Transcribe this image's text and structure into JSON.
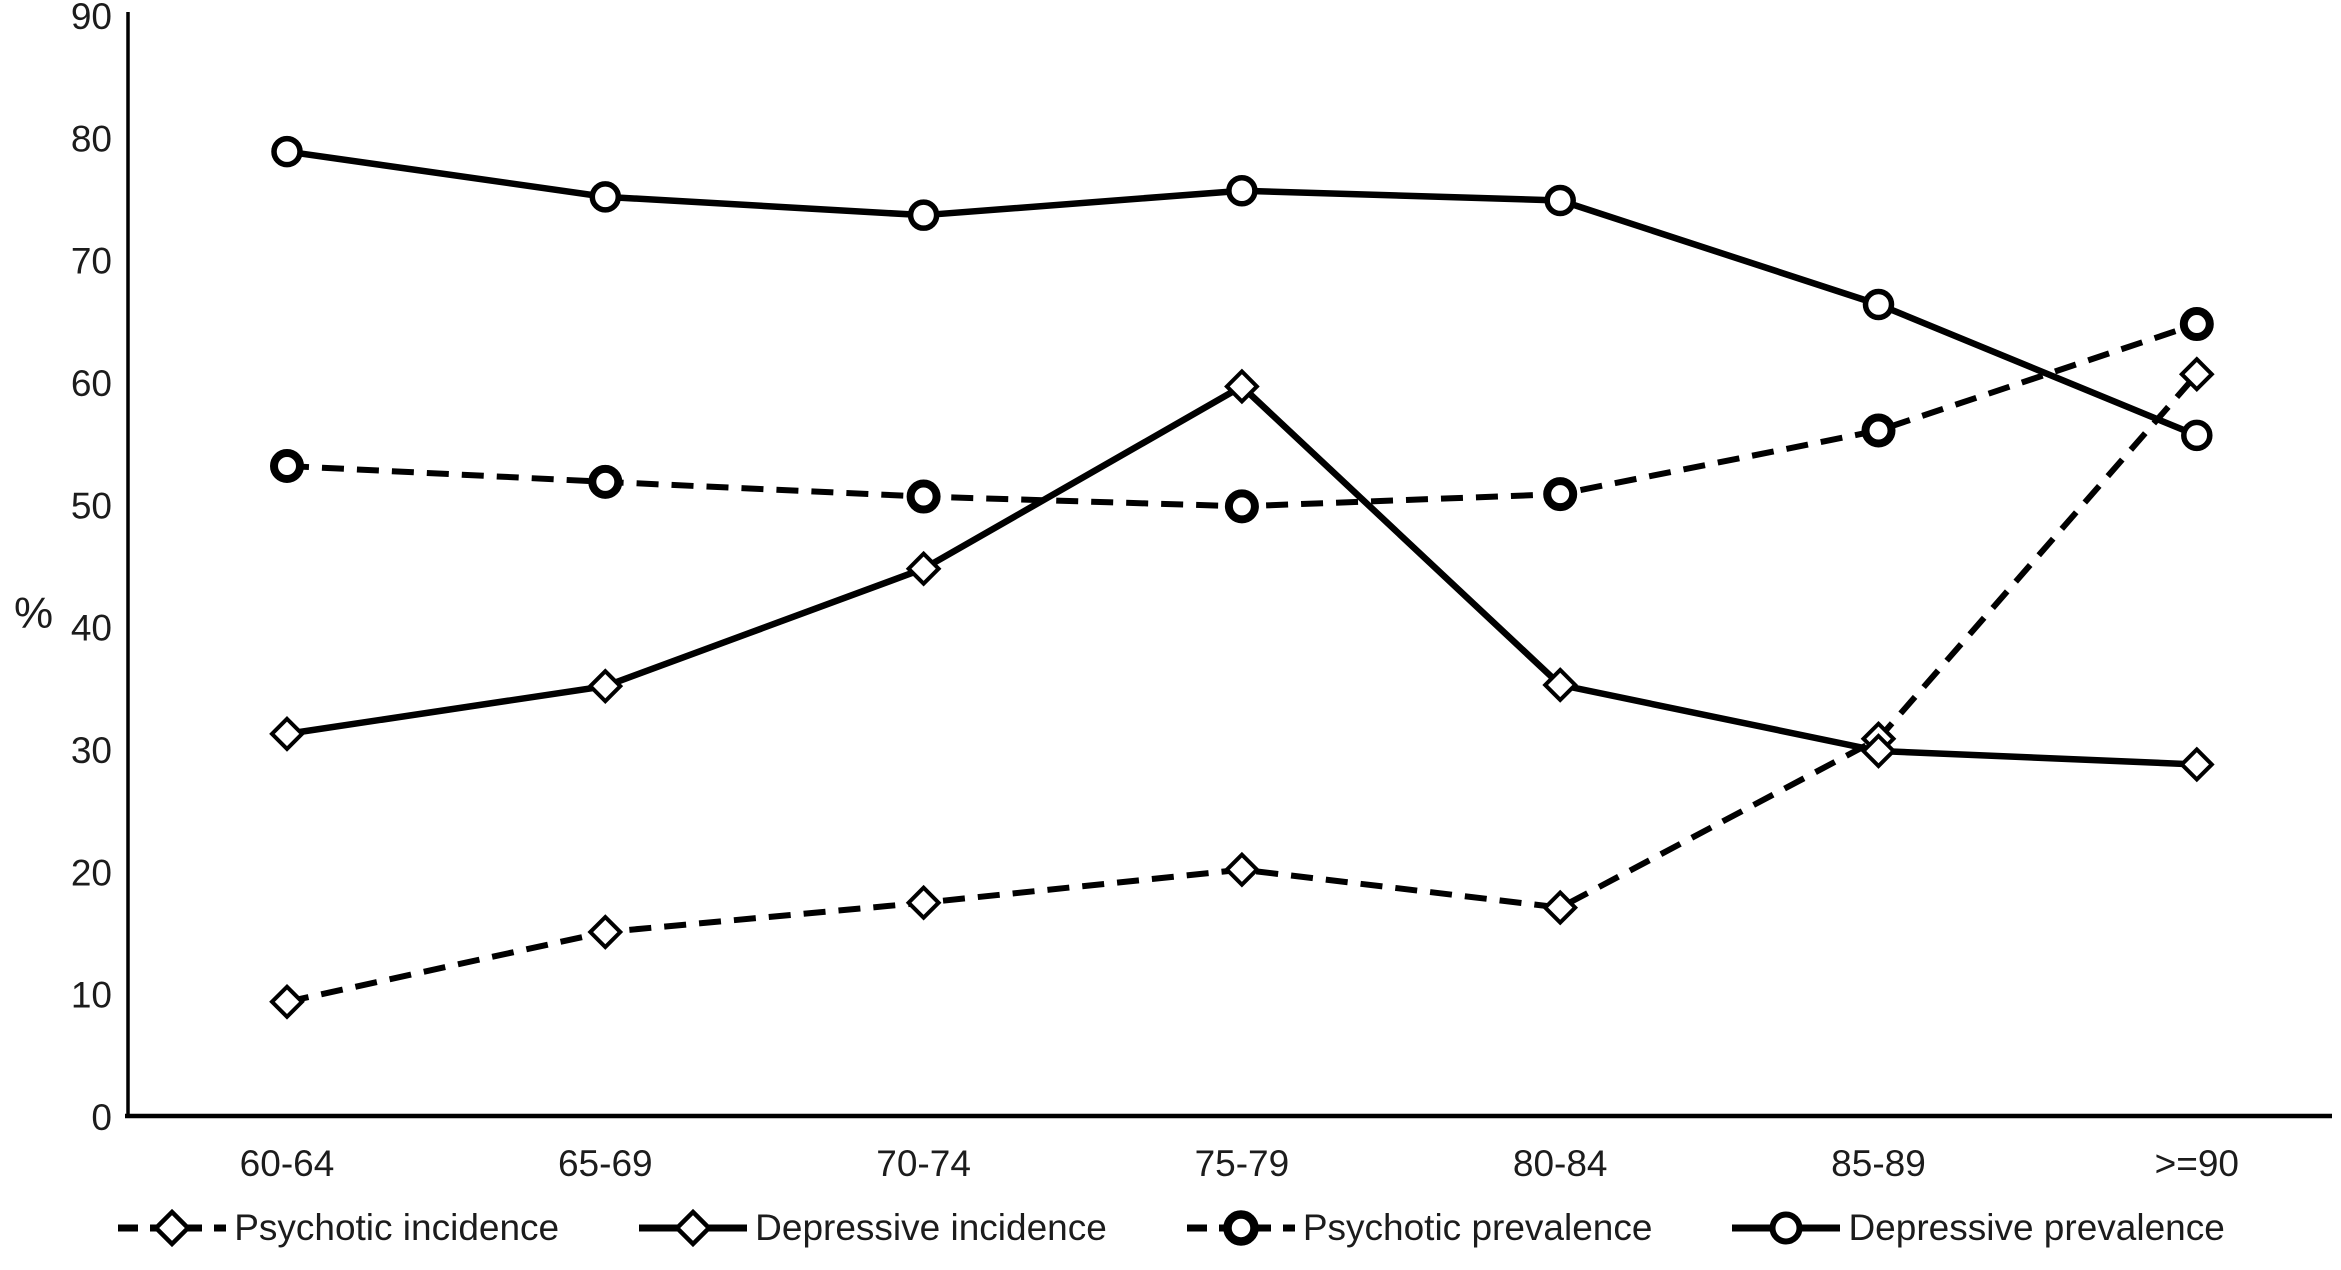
{
  "page": {
    "background": "#ffffff",
    "line_color": "#000000",
    "text_color": "#1c1c1c"
  },
  "chart_data": {
    "type": "line",
    "title": "",
    "xlabel": "",
    "ylabel": "%",
    "ylim": [
      0,
      90
    ],
    "yticks": [
      0,
      10,
      20,
      30,
      40,
      50,
      60,
      70,
      80,
      90
    ],
    "categories": [
      "60-64",
      "65-69",
      "70-74",
      "75-79",
      "80-84",
      "85-89",
      ">=90"
    ],
    "grid": false,
    "legend_position": "bottom",
    "series": [
      {
        "name": "Psychotic incidence",
        "line": "dashed",
        "marker": "diamond",
        "bold_marker": false,
        "values": [
          9.5,
          15.2,
          17.6,
          20.3,
          17.2,
          31.0,
          60.8
        ]
      },
      {
        "name": "Depressive incidence",
        "line": "solid",
        "marker": "diamond",
        "bold_marker": false,
        "values": [
          31.4,
          35.3,
          44.9,
          59.8,
          35.4,
          30.0,
          28.9
        ]
      },
      {
        "name": "Psychotic prevalence",
        "line": "dashed",
        "marker": "circle",
        "bold_marker": true,
        "values": [
          53.3,
          52.0,
          50.8,
          50.0,
          51.0,
          56.2,
          64.9
        ]
      },
      {
        "name": "Depressive prevalence",
        "line": "solid",
        "marker": "circle",
        "bold_marker": false,
        "values": [
          79.0,
          75.3,
          73.8,
          75.8,
          75.0,
          66.5,
          55.8
        ]
      }
    ]
  }
}
